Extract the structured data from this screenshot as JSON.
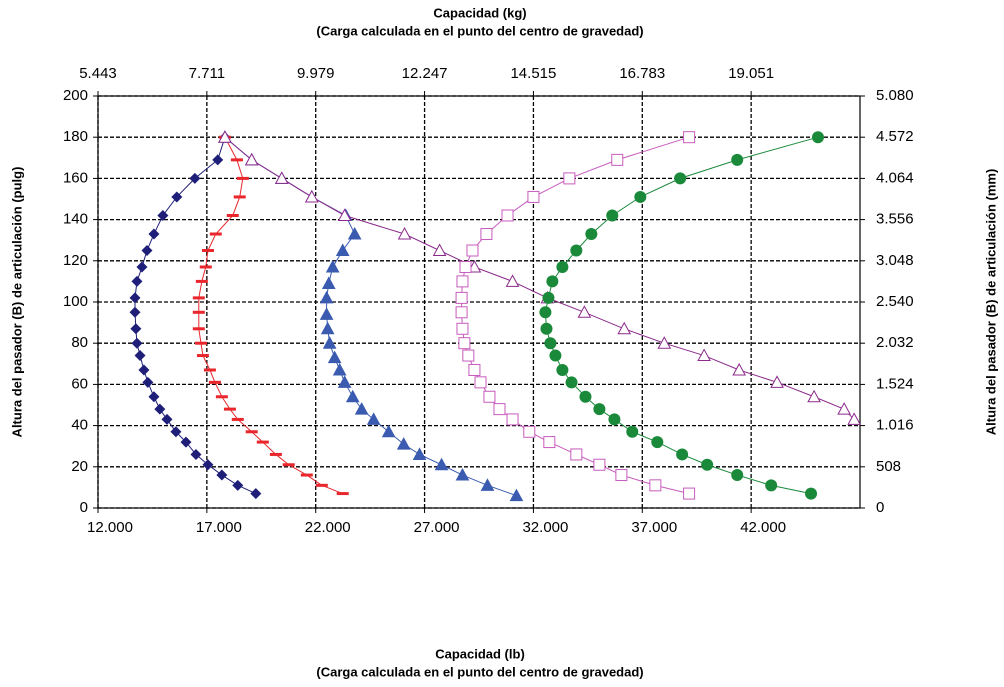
{
  "chart_data": {
    "type": "scatter",
    "title": "Capacidad (kg)",
    "subtitle": "(Carga calculada en el punto del centro de gravedad)",
    "xlabel": "Capacidad (lb)",
    "xlabel_note": "(Carga calculada en el punto del centro de gravedad)",
    "ylabel": "Altura del pasador (B) de articulación (pulg)",
    "y2label": "Altura del pasador (B) de articulación (mm)",
    "xlim": [
      12000,
      47000
    ],
    "xticks": [
      {
        "value": 12000,
        "label": "12.000"
      },
      {
        "value": 17000,
        "label": "17.000"
      },
      {
        "value": 22000,
        "label": "22.000"
      },
      {
        "value": 27000,
        "label": "27.000"
      },
      {
        "value": 32000,
        "label": "32.000"
      },
      {
        "value": 37000,
        "label": "37.000"
      },
      {
        "value": 42000,
        "label": "42.000"
      }
    ],
    "x2lim": [
      5443,
      21319
    ],
    "x2ticks": [
      {
        "value": 5443,
        "label": "5.443"
      },
      {
        "value": 7711,
        "label": "7.711"
      },
      {
        "value": 9979,
        "label": "9.979"
      },
      {
        "value": 12247,
        "label": "12.247"
      },
      {
        "value": 14515,
        "label": "14.515"
      },
      {
        "value": 16783,
        "label": "16.783"
      },
      {
        "value": 19051,
        "label": "19.051"
      }
    ],
    "ylim": [
      0,
      200
    ],
    "yticks": [
      0,
      20,
      40,
      60,
      80,
      100,
      120,
      140,
      160,
      180,
      200
    ],
    "y2lim": [
      0,
      5080
    ],
    "y2ticks": [
      0,
      508,
      {
        "value": 1016,
        "label": "1.016"
      },
      {
        "value": 1524,
        "label": "1.524"
      },
      {
        "value": 2032,
        "label": "2.032"
      },
      {
        "value": 2540,
        "label": "2.540"
      },
      {
        "value": 3048,
        "label": "3.048"
      },
      {
        "value": 3556,
        "label": "3.556"
      },
      {
        "value": 4064,
        "label": "4.064"
      },
      {
        "value": 4572,
        "label": "4.572"
      },
      {
        "value": 5080,
        "label": "5.080"
      }
    ],
    "grid": true,
    "series": [
      {
        "color": "#1f1f7a",
        "marker": "diamond",
        "x": [
          19250,
          18420,
          17690,
          17050,
          16500,
          16040,
          15580,
          15170,
          14840,
          14570,
          14290,
          14110,
          13930,
          13790,
          13740,
          13700,
          13700,
          13790,
          14020,
          14250,
          14570,
          14980,
          15620,
          16450,
          17500,
          17830
        ],
        "y": [
          7,
          11,
          16,
          21,
          26,
          32,
          37,
          43,
          48,
          54,
          61,
          67,
          74,
          80,
          87,
          95,
          102,
          110,
          117,
          125,
          133,
          142,
          151,
          160,
          169,
          180
        ]
      },
      {
        "color": "#e8262b",
        "marker": "dash",
        "x": [
          23240,
          22280,
          21590,
          20760,
          20170,
          19570,
          19060,
          18420,
          18060,
          17690,
          17370,
          17140,
          16820,
          16730,
          16630,
          16630,
          16630,
          16770,
          16950,
          17050,
          17410,
          18190,
          18510,
          18650,
          18380,
          17830
        ],
        "y": [
          7,
          11,
          16,
          21,
          26,
          32,
          37,
          43,
          48,
          54,
          61,
          67,
          74,
          80,
          87,
          95,
          102,
          110,
          117,
          125,
          133,
          142,
          151,
          160,
          169,
          180
        ]
      },
      {
        "color": "#3a5bb0",
        "marker": "triangle",
        "x": [
          31220,
          29890,
          28740,
          27780,
          26770,
          26040,
          25350,
          24660,
          24110,
          23700,
          23330,
          23100,
          22870,
          22640,
          22550,
          22500,
          22500,
          22600,
          22780,
          23240,
          23790,
          23380,
          21820,
          20440,
          19060,
          17830
        ],
        "y": [
          6,
          11,
          16,
          21,
          26,
          31,
          37,
          43,
          48,
          54,
          61,
          67,
          73,
          80,
          87,
          94,
          102,
          109,
          117,
          125,
          133,
          142,
          151,
          160,
          169,
          180
        ]
      },
      {
        "color": "#8b2a8b",
        "marker": "triangle-open",
        "x": [
          46730,
          46270,
          44890,
          43190,
          41450,
          39840,
          38010,
          36170,
          34340,
          32640,
          31040,
          29290,
          27690,
          26080,
          23330,
          21820,
          20440,
          19060,
          17830
        ],
        "y": [
          43,
          48,
          54,
          61,
          67,
          74,
          80,
          87,
          95,
          102,
          110,
          117,
          125,
          133,
          142,
          151,
          160,
          169,
          180
        ]
      },
      {
        "color": "#c85bbd",
        "marker": "square-open",
        "x": [
          39150,
          37600,
          36040,
          35030,
          33970,
          32730,
          31810,
          31040,
          30440,
          29980,
          29570,
          29290,
          29010,
          28830,
          28740,
          28700,
          28700,
          28740,
          28880,
          29200,
          29840,
          30810,
          32000,
          33650,
          35850,
          39150
        ],
        "y": [
          7,
          11,
          16,
          21,
          26,
          32,
          37,
          43,
          48,
          54,
          61,
          67,
          74,
          80,
          87,
          95,
          102,
          110,
          117,
          125,
          133,
          142,
          151,
          160,
          169,
          180
        ]
      },
      {
        "color": "#1a8a3a",
        "marker": "circle",
        "x": [
          44750,
          42920,
          41360,
          39980,
          38830,
          37690,
          36540,
          35720,
          35030,
          34390,
          33750,
          33330,
          33010,
          32780,
          32600,
          32550,
          32690,
          32870,
          33330,
          33970,
          34660,
          35620,
          36910,
          38740,
          41360,
          45070
        ],
        "y": [
          7,
          11,
          16,
          21,
          26,
          32,
          37,
          43,
          48,
          54,
          61,
          67,
          74,
          80,
          87,
          95,
          102,
          110,
          117,
          125,
          133,
          142,
          151,
          160,
          169,
          180
        ]
      }
    ]
  }
}
